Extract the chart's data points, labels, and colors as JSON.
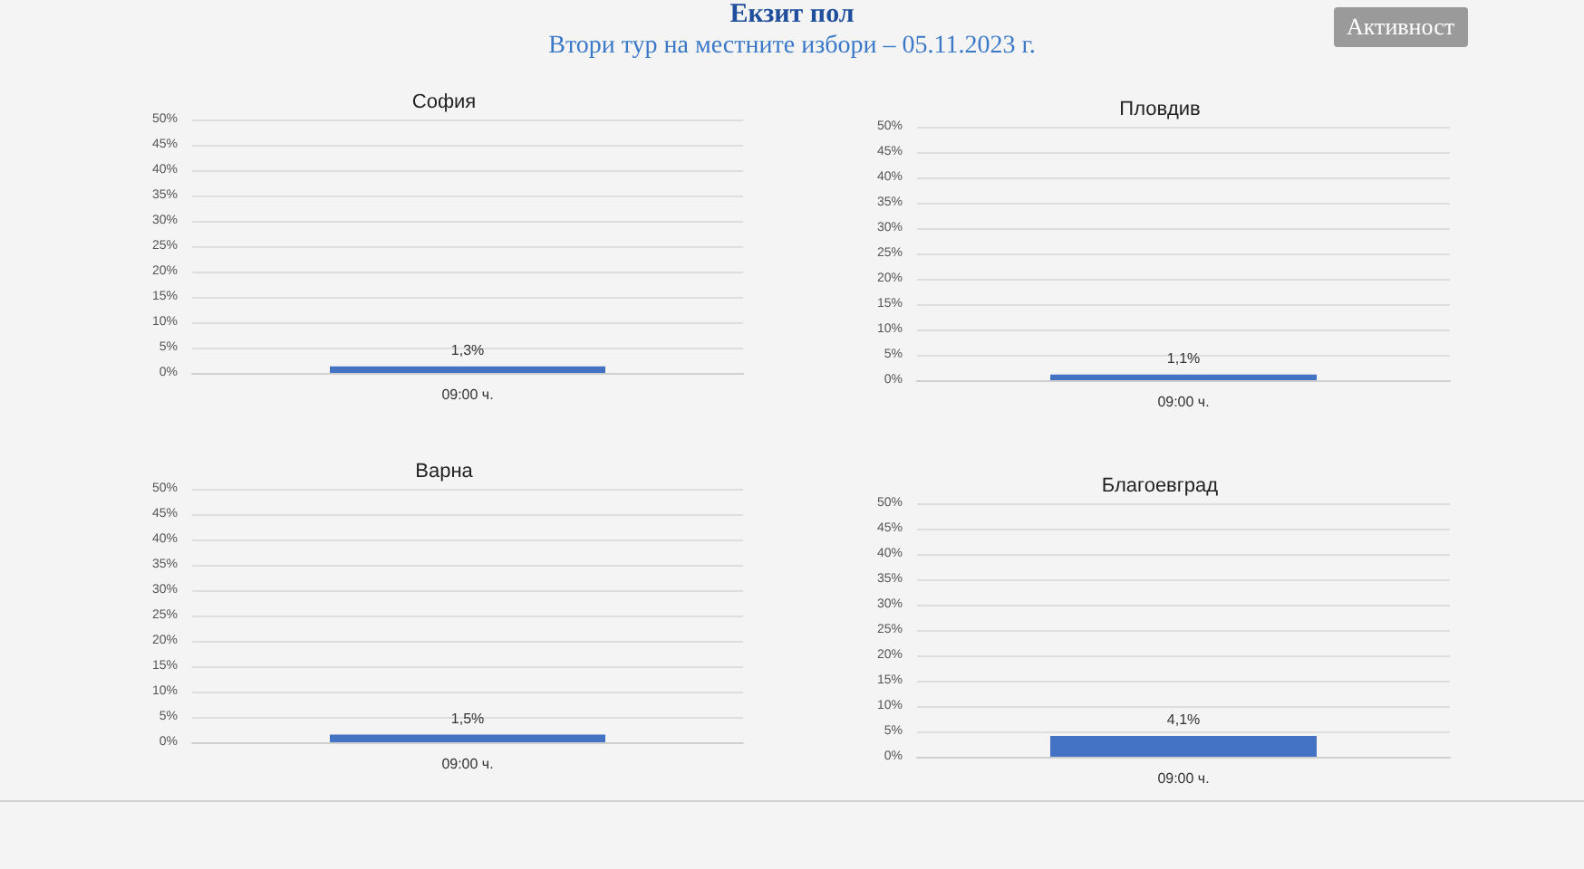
{
  "chart_data": [
    {
      "type": "other",
      "title": "Екзит пол",
      "subtitle": "Втори тур на местните избори – 05.11.2023 г.",
      "annotations": [
        "Активност"
      ]
    },
    {
      "type": "bar",
      "title": "София",
      "categories": [
        "09:00 ч."
      ],
      "values": [
        1.3
      ],
      "value_labels": [
        "1,3%"
      ],
      "color": "#4472c4",
      "ylim": [
        0,
        50
      ],
      "yticks": [
        {
          "value": 0,
          "label": "0%"
        },
        {
          "value": 5,
          "label": "5%"
        },
        {
          "value": 10,
          "label": "10%"
        },
        {
          "value": 15,
          "label": "15%"
        },
        {
          "value": 20,
          "label": "20%"
        },
        {
          "value": 25,
          "label": "25%"
        },
        {
          "value": 30,
          "label": "30%"
        },
        {
          "value": 35,
          "label": "35%"
        },
        {
          "value": 40,
          "label": "40%"
        },
        {
          "value": 45,
          "label": "45%"
        },
        {
          "value": 50,
          "label": "50%"
        }
      ],
      "grid": "y"
    },
    {
      "type": "bar",
      "title": "Пловдив",
      "categories": [
        "09:00 ч."
      ],
      "values": [
        1.1
      ],
      "value_labels": [
        "1,1%"
      ],
      "color": "#4472c4",
      "ylim": [
        0,
        50
      ],
      "yticks": [
        {
          "value": 0,
          "label": "0%"
        },
        {
          "value": 5,
          "label": "5%"
        },
        {
          "value": 10,
          "label": "10%"
        },
        {
          "value": 15,
          "label": "15%"
        },
        {
          "value": 20,
          "label": "20%"
        },
        {
          "value": 25,
          "label": "25%"
        },
        {
          "value": 30,
          "label": "30%"
        },
        {
          "value": 35,
          "label": "35%"
        },
        {
          "value": 40,
          "label": "40%"
        },
        {
          "value": 45,
          "label": "45%"
        },
        {
          "value": 50,
          "label": "50%"
        }
      ],
      "grid": "y"
    },
    {
      "type": "bar",
      "title": "Варна",
      "categories": [
        "09:00 ч."
      ],
      "values": [
        1.5
      ],
      "value_labels": [
        "1,5%"
      ],
      "color": "#4472c4",
      "ylim": [
        0,
        50
      ],
      "yticks": [
        {
          "value": 0,
          "label": "0%"
        },
        {
          "value": 5,
          "label": "5%"
        },
        {
          "value": 10,
          "label": "10%"
        },
        {
          "value": 15,
          "label": "15%"
        },
        {
          "value": 20,
          "label": "20%"
        },
        {
          "value": 25,
          "label": "25%"
        },
        {
          "value": 30,
          "label": "30%"
        },
        {
          "value": 35,
          "label": "35%"
        },
        {
          "value": 40,
          "label": "40%"
        },
        {
          "value": 45,
          "label": "45%"
        },
        {
          "value": 50,
          "label": "50%"
        }
      ],
      "grid": "y"
    },
    {
      "type": "bar",
      "title": "Благоевград",
      "categories": [
        "09:00 ч."
      ],
      "values": [
        4.1
      ],
      "value_labels": [
        "4,1%"
      ],
      "color": "#4472c4",
      "ylim": [
        0,
        50
      ],
      "yticks": [
        {
          "value": 0,
          "label": "0%"
        },
        {
          "value": 5,
          "label": "5%"
        },
        {
          "value": 10,
          "label": "10%"
        },
        {
          "value": 15,
          "label": "15%"
        },
        {
          "value": 20,
          "label": "20%"
        },
        {
          "value": 25,
          "label": "25%"
        },
        {
          "value": 30,
          "label": "30%"
        },
        {
          "value": 35,
          "label": "35%"
        },
        {
          "value": 40,
          "label": "40%"
        },
        {
          "value": 45,
          "label": "45%"
        },
        {
          "value": 50,
          "label": "50%"
        }
      ],
      "grid": "y"
    }
  ]
}
